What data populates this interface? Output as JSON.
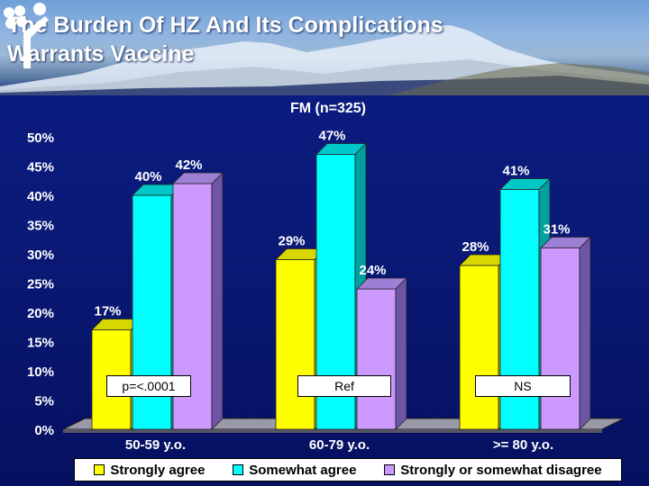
{
  "slide": {
    "title_line1": "The Burden Of HZ And Its Complications",
    "title_line2": "Warrants Vaccine"
  },
  "chart_data": {
    "type": "bar",
    "title": "FM (n=325)",
    "xlabel": "",
    "ylabel": "",
    "ylim": [
      0,
      50
    ],
    "yticks": [
      "0%",
      "5%",
      "10%",
      "15%",
      "20%",
      "25%",
      "30%",
      "35%",
      "40%",
      "45%",
      "50%"
    ],
    "categories": [
      "50-59 y.o.",
      "60-79 y.o.",
      ">= 80 y.o."
    ],
    "series": [
      {
        "name": "Strongly agree",
        "color": "#ffff00",
        "values": [
          17,
          29,
          28
        ],
        "labels": [
          "17%",
          "29%",
          "28%"
        ]
      },
      {
        "name": "Somewhat agree",
        "color": "#00ffff",
        "values": [
          40,
          47,
          41
        ],
        "labels": [
          "40%",
          "47%",
          "41%"
        ]
      },
      {
        "name": "Strongly or somewhat disagree",
        "color": "#cc99ff",
        "values": [
          42,
          24,
          31
        ],
        "labels": [
          "42%",
          "24%",
          "31%"
        ]
      }
    ],
    "annotations": [
      "p=<.0001",
      "Ref",
      "NS"
    ],
    "legend_position": "bottom",
    "grid": false
  }
}
